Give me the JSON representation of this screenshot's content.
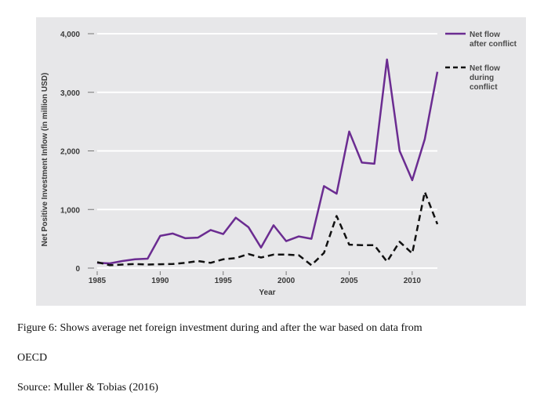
{
  "chart_data": {
    "type": "line",
    "xlabel": "Year",
    "ylabel": "Net Positive Investment Inflow (in million USD)",
    "xlim": [
      1985,
      2012
    ],
    "ylim": [
      0,
      4000
    ],
    "x_ticks": [
      1985,
      1990,
      1995,
      2000,
      2005,
      2010
    ],
    "y_ticks": [
      0,
      1000,
      2000,
      3000,
      4000
    ],
    "y_tick_labels": [
      "0",
      "1,000",
      "2,000",
      "3,000",
      "4,000"
    ],
    "grid": "horizontal",
    "legend_position": "top-right",
    "series": [
      {
        "name": "Net flow after conflict",
        "legend_lines": [
          "Net flow",
          "after conflict"
        ],
        "style": "solid",
        "color": "#6b2c91",
        "x": [
          1985,
          1986,
          1987,
          1988,
          1989,
          1990,
          1991,
          1992,
          1993,
          1994,
          1995,
          1996,
          1997,
          1998,
          1999,
          2000,
          2001,
          2002,
          2003,
          2004,
          2005,
          2006,
          2007,
          2008,
          2009,
          2010,
          2011,
          2012
        ],
        "values": [
          90,
          80,
          120,
          150,
          160,
          550,
          590,
          510,
          520,
          650,
          580,
          860,
          700,
          350,
          730,
          460,
          540,
          500,
          1400,
          1270,
          2330,
          1800,
          1780,
          3560,
          2000,
          1500,
          2200,
          3350
        ]
      },
      {
        "name": "Net flow during conflict",
        "legend_lines": [
          "Net flow",
          "during",
          "conflict"
        ],
        "style": "dashed",
        "color": "#111111",
        "x": [
          1985,
          1986,
          1987,
          1988,
          1989,
          1990,
          1991,
          1992,
          1993,
          1994,
          1995,
          1996,
          1997,
          1998,
          1999,
          2000,
          2001,
          2002,
          2003,
          2004,
          2005,
          2006,
          2007,
          2008,
          2009,
          2010,
          2011,
          2012
        ],
        "values": [
          100,
          50,
          60,
          70,
          60,
          65,
          70,
          90,
          120,
          90,
          150,
          170,
          240,
          180,
          230,
          230,
          220,
          50,
          260,
          890,
          400,
          390,
          390,
          110,
          450,
          250,
          1300,
          750
        ]
      }
    ]
  },
  "caption": {
    "line1": "Figure 6: Shows average net foreign investment during and after the war based on data from",
    "line2": "OECD",
    "source": "Source: Muller & Tobias (2016)"
  }
}
